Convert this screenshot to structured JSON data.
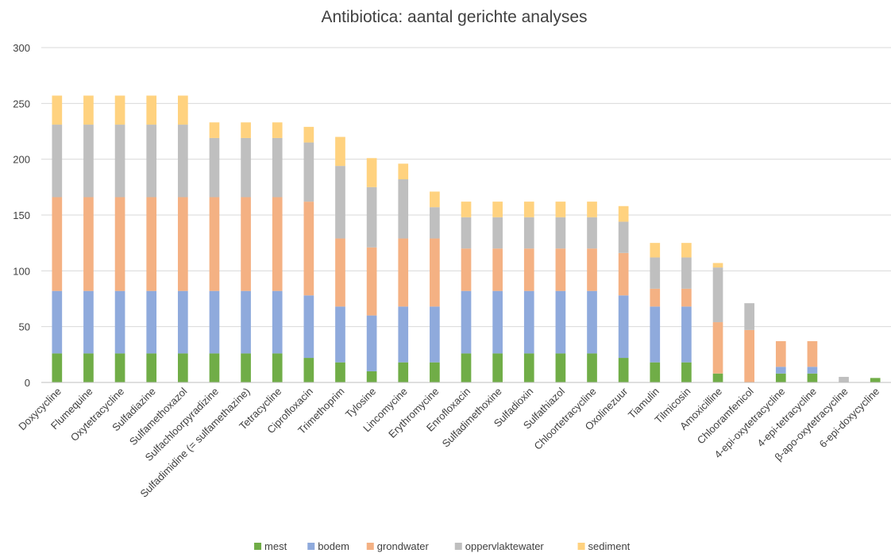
{
  "chart_data": {
    "type": "bar",
    "stacked": true,
    "title": "Antibiotica: aantal gerichte analyses",
    "xlabel": "",
    "ylabel": "",
    "ylim": [
      0,
      300
    ],
    "yticks": [
      0,
      50,
      100,
      150,
      200,
      250,
      300
    ],
    "grid": true,
    "legend_position": "bottom",
    "categories": [
      "Doxycycline",
      "Flumequine",
      "Oxytetracycline",
      "Sulfadiazine",
      "Sulfamethoxazol",
      "Sulfachloorpyradizine",
      "Sulfadimidine (= sulfamethazine)",
      "Tetracycline",
      "Ciprofloxacin",
      "Trimethoprim",
      "Tylosine",
      "Lincomycine",
      "Erythromycine",
      "Enrofloxacin",
      "Sulfadimethoxine",
      "Sulfadioxin",
      "Sulfathiazol",
      "Chloortetracycline",
      "Oxolinezuur",
      "Tiamulin",
      "Tilmicosin",
      "Amoxicilline",
      "Chlooramfenicol",
      "4-epi-oxytetracycline",
      "4-epi-tetracycline",
      "β-apo-oxytetracycline",
      "6-epi-doxycycline"
    ],
    "series": [
      {
        "name": "mest",
        "color": "#70ad47",
        "values": [
          26,
          26,
          26,
          26,
          26,
          26,
          26,
          26,
          22,
          18,
          10,
          18,
          18,
          26,
          26,
          26,
          26,
          26,
          22,
          18,
          18,
          8,
          0,
          8,
          8,
          0,
          4
        ]
      },
      {
        "name": "bodem",
        "color": "#8faadc",
        "values": [
          56,
          56,
          56,
          56,
          56,
          56,
          56,
          56,
          56,
          50,
          50,
          50,
          50,
          56,
          56,
          56,
          56,
          56,
          56,
          50,
          50,
          0,
          0,
          6,
          6,
          0,
          0
        ]
      },
      {
        "name": "grondwater",
        "color": "#f4b183",
        "values": [
          84,
          84,
          84,
          84,
          84,
          84,
          84,
          84,
          84,
          61,
          61,
          61,
          61,
          38,
          38,
          38,
          38,
          38,
          38,
          16,
          16,
          46,
          47,
          23,
          23,
          0,
          0
        ]
      },
      {
        "name": "oppervlaktewater",
        "color": "#bfbfbf",
        "values": [
          65,
          65,
          65,
          65,
          65,
          53,
          53,
          53,
          53,
          65,
          54,
          53,
          28,
          28,
          28,
          28,
          28,
          28,
          28,
          28,
          28,
          49,
          24,
          0,
          0,
          5,
          0
        ]
      },
      {
        "name": "sediment",
        "color": "#ffd27f",
        "values": [
          26,
          26,
          26,
          26,
          26,
          14,
          14,
          14,
          14,
          26,
          26,
          14,
          14,
          14,
          14,
          14,
          14,
          14,
          14,
          13,
          13,
          4,
          0,
          0,
          0,
          0,
          0
        ]
      }
    ]
  }
}
